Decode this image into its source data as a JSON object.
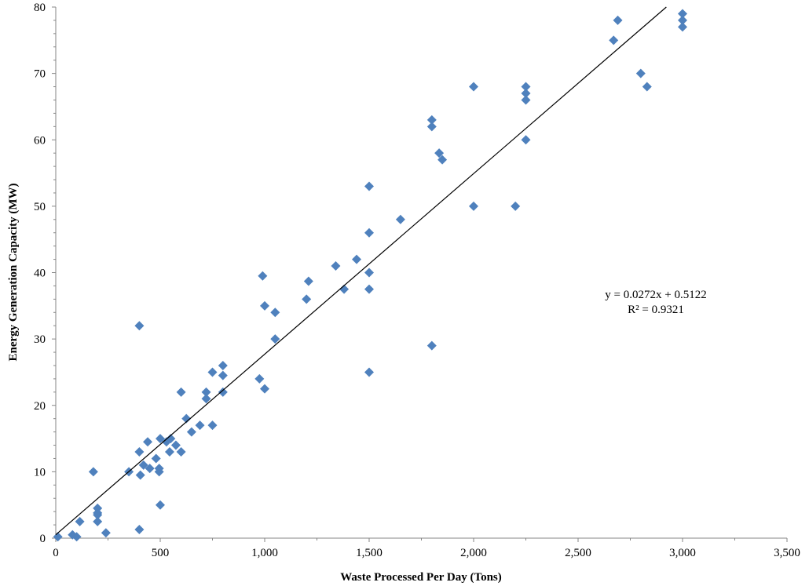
{
  "chart_data": {
    "type": "scatter",
    "title": "",
    "xlabel": "Waste Processed Per Day (Tons)",
    "ylabel": "Energy Generation Capacity (MW)",
    "xlim": [
      0,
      3500
    ],
    "ylim": [
      0,
      80
    ],
    "xticks": [
      "0",
      "500",
      "1,000",
      "1,500",
      "2,000",
      "2,500",
      "3,000",
      "3,500"
    ],
    "yticks": [
      "0",
      "10",
      "20",
      "30",
      "40",
      "50",
      "60",
      "70",
      "80"
    ],
    "grid": false,
    "marker_color": "#4f81bd",
    "trendline": {
      "slope": 0.0272,
      "intercept": 0.5122,
      "equation": "y = 0.0272x + 0.5122",
      "r2": "R² = 0.9321"
    },
    "points": [
      [
        10,
        0.2
      ],
      [
        80,
        0.5
      ],
      [
        100,
        0.2
      ],
      [
        115,
        2.5
      ],
      [
        180,
        10
      ],
      [
        200,
        4.5
      ],
      [
        200,
        3.8
      ],
      [
        200,
        3.5
      ],
      [
        200,
        2.5
      ],
      [
        240,
        0.8
      ],
      [
        350,
        10
      ],
      [
        400,
        32
      ],
      [
        400,
        13
      ],
      [
        400,
        1.3
      ],
      [
        405,
        9.5
      ],
      [
        420,
        11
      ],
      [
        440,
        14.5
      ],
      [
        450,
        10.5
      ],
      [
        480,
        12
      ],
      [
        495,
        10
      ],
      [
        495,
        10.5
      ],
      [
        500,
        15
      ],
      [
        500,
        5
      ],
      [
        530,
        14.5
      ],
      [
        545,
        13
      ],
      [
        550,
        15
      ],
      [
        575,
        14
      ],
      [
        600,
        22
      ],
      [
        600,
        13
      ],
      [
        625,
        18
      ],
      [
        650,
        16
      ],
      [
        690,
        17
      ],
      [
        720,
        22
      ],
      [
        720,
        21
      ],
      [
        750,
        25
      ],
      [
        750,
        17
      ],
      [
        800,
        26
      ],
      [
        800,
        24.5
      ],
      [
        800,
        22
      ],
      [
        975,
        24
      ],
      [
        990,
        39.5
      ],
      [
        1000,
        35
      ],
      [
        1000,
        22.5
      ],
      [
        1050,
        34
      ],
      [
        1050,
        30
      ],
      [
        1200,
        36
      ],
      [
        1210,
        38.7
      ],
      [
        1340,
        41
      ],
      [
        1380,
        37.5
      ],
      [
        1440,
        42
      ],
      [
        1500,
        53
      ],
      [
        1500,
        46
      ],
      [
        1500,
        40
      ],
      [
        1500,
        37.5
      ],
      [
        1500,
        25
      ],
      [
        1650,
        48
      ],
      [
        1800,
        63
      ],
      [
        1800,
        62
      ],
      [
        1800,
        29
      ],
      [
        1835,
        58
      ],
      [
        1850,
        57
      ],
      [
        2000,
        68
      ],
      [
        2000,
        50
      ],
      [
        2200,
        50
      ],
      [
        2250,
        68
      ],
      [
        2250,
        67
      ],
      [
        2250,
        66
      ],
      [
        2250,
        60
      ],
      [
        2670,
        75
      ],
      [
        2690,
        78
      ],
      [
        2800,
        70
      ],
      [
        2830,
        68
      ],
      [
        3000,
        79
      ],
      [
        3000,
        78
      ],
      [
        3000,
        77
      ]
    ]
  }
}
